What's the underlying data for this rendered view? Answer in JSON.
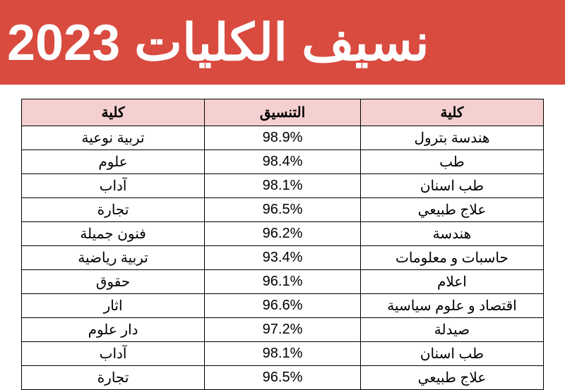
{
  "banner": {
    "text": "نسيف الكليات 2023",
    "bg_color": "#d94a3f",
    "text_color": "#ffffff",
    "font_size": 72
  },
  "table": {
    "header_bg": "#f5d0d0",
    "border_color": "#000000",
    "cell_bg": "#ffffff",
    "text_color": "#000000",
    "font_size": 20,
    "columns": [
      {
        "key": "faculty_right",
        "label": "كلية",
        "width": "27%"
      },
      {
        "key": "score",
        "label": "التنسيق",
        "width": "23%"
      },
      {
        "key": "faculty_left",
        "label": "كلية",
        "width": "27%"
      }
    ],
    "rows": [
      {
        "faculty_right": "هندسة بترول",
        "score": "98.9%",
        "faculty_left": "تربية نوعية"
      },
      {
        "faculty_right": "طب",
        "score": "98.4%",
        "faculty_left": "علوم"
      },
      {
        "faculty_right": "طب اسنان",
        "score": "98.1%",
        "faculty_left": "آداب"
      },
      {
        "faculty_right": "علاج طبيعي",
        "score": "96.5%",
        "faculty_left": "تجارة"
      },
      {
        "faculty_right": "هندسة",
        "score": "96.2%",
        "faculty_left": "فنون جميلة"
      },
      {
        "faculty_right": "حاسبات و معلومات",
        "score": "93.4%",
        "faculty_left": "تربية رياضية"
      },
      {
        "faculty_right": "اعلام",
        "score": "96.1%",
        "faculty_left": "حقوق"
      },
      {
        "faculty_right": "اقتصاد و علوم سياسية",
        "score": "96.6%",
        "faculty_left": "اثار"
      },
      {
        "faculty_right": "صيدلة",
        "score": "97.2%",
        "faculty_left": "دار علوم"
      },
      {
        "faculty_right": "طب اسنان",
        "score": "98.1%",
        "faculty_left": "آداب"
      },
      {
        "faculty_right": "علاج طبيعي",
        "score": "96.5%",
        "faculty_left": "تجارة"
      }
    ]
  }
}
